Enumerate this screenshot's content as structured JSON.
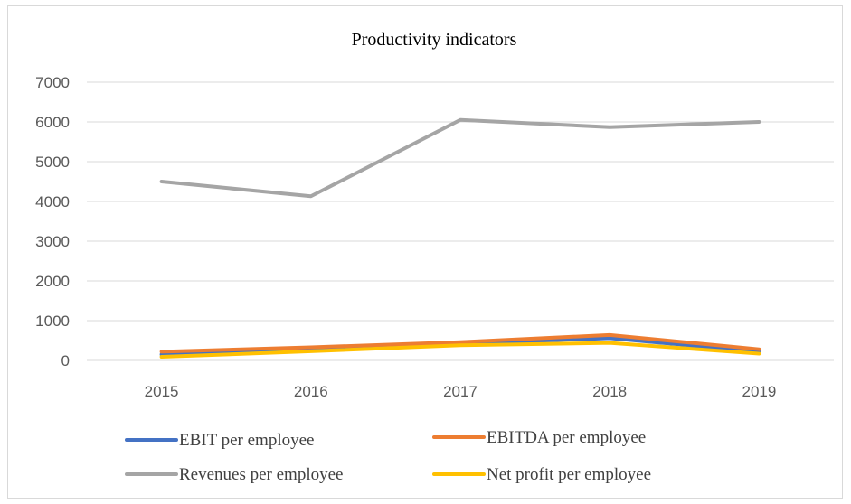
{
  "chart_data": {
    "type": "line",
    "title": "Productivity indicators",
    "xlabel": "",
    "ylabel": "",
    "x": [
      "2015",
      "2016",
      "2017",
      "2018",
      "2019"
    ],
    "ylim": [
      0,
      7000
    ],
    "yticks": [
      0,
      1000,
      2000,
      3000,
      4000,
      5000,
      6000,
      7000
    ],
    "grid": true,
    "legend_position": "bottom",
    "series": [
      {
        "name": "EBIT per employee",
        "color": "#4472c4",
        "values": [
          150,
          290,
          420,
          560,
          220
        ]
      },
      {
        "name": "EBITDA per employee",
        "color": "#ed7d31",
        "values": [
          220,
          330,
          460,
          640,
          280
        ]
      },
      {
        "name": "Revenues per employee",
        "color": "#a5a5a5",
        "values": [
          4500,
          4130,
          6050,
          5870,
          6000
        ]
      },
      {
        "name": "Net profit per employee",
        "color": "#ffc000",
        "values": [
          90,
          230,
          380,
          440,
          170
        ]
      }
    ]
  }
}
